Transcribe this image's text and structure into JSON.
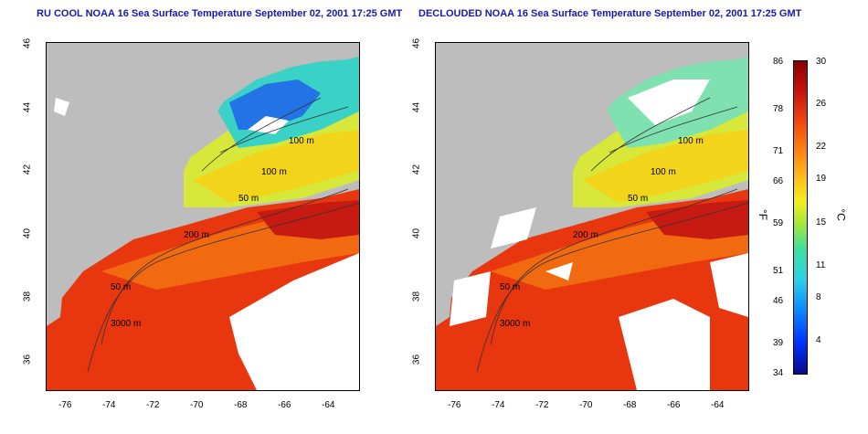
{
  "titles": {
    "left": "RU COOL NOAA 16 Sea Surface Temperature September 02, 2001 17:25 GMT",
    "right": "DECLOUDED NOAA 16 Sea Surface Temperature September 02, 2001 17:25 GMT"
  },
  "axes": {
    "x_ticks": [
      "-76",
      "-74",
      "-72",
      "-70",
      "-68",
      "-66",
      "-64"
    ],
    "y_ticks": [
      "36",
      "38",
      "40",
      "42",
      "44",
      "46"
    ]
  },
  "contour_labels": {
    "left": [
      "100 m",
      "100 m",
      "50 m",
      "200 m",
      "50 m",
      "3000 m"
    ],
    "right": [
      "100 m",
      "100 m",
      "50 m",
      "200 m",
      "50 m",
      "3000 m"
    ]
  },
  "colorbar": {
    "fahrenheit": [
      "86",
      "78",
      "71",
      "66",
      "59",
      "51",
      "46",
      "39",
      "34"
    ],
    "celsius": [
      "30",
      "26",
      "22",
      "19",
      "15",
      "11",
      "8",
      "4"
    ],
    "unit_f": "°F",
    "unit_c": "°C"
  },
  "colors": {
    "land": "#bdbdbd",
    "cloud": "#ffffff",
    "warm": "#e8360f",
    "cool": "#2fb0e8",
    "title": "#1a1aa6"
  }
}
